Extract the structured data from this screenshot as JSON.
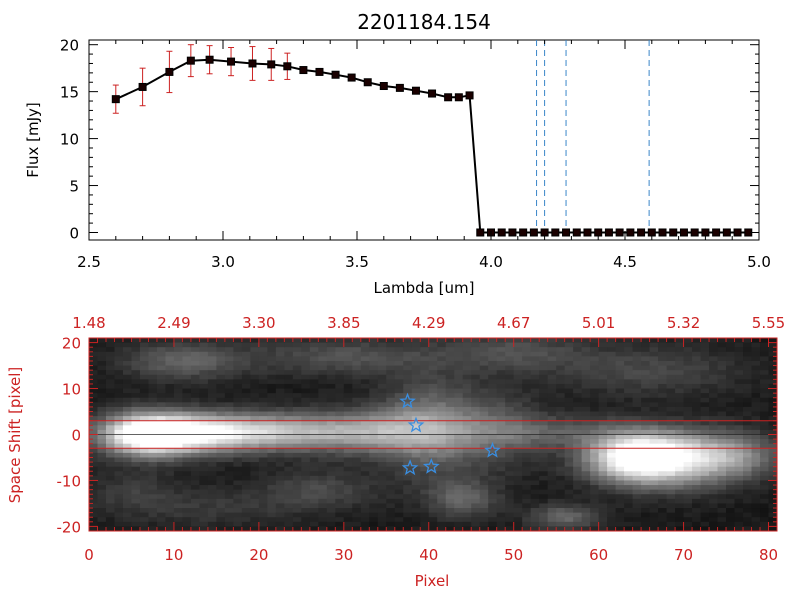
{
  "colors": {
    "axis_top": "#000000",
    "axis_bottom": "#cc2222",
    "errorbar": "#cc2222",
    "dashed_lines": "#3a86c8",
    "stars": "#3a8ee0",
    "band_lines": "#cc2222"
  },
  "chart_data": [
    {
      "type": "line",
      "title": "2201184.154",
      "xlabel": "Lambda [um]",
      "ylabel": "Flux [mJy]",
      "xlim": [
        2.5,
        5.0
      ],
      "ylim": [
        -0.8,
        20.5
      ],
      "xticks": [
        "2.5",
        "3.0",
        "3.5",
        "4.0",
        "4.5",
        "5.0"
      ],
      "yticks": [
        "0",
        "5",
        "10",
        "15",
        "20"
      ],
      "series": [
        {
          "x": [
            2.6,
            2.7,
            2.8,
            2.88,
            2.95,
            3.03,
            3.11,
            3.18,
            3.24,
            3.3,
            3.36,
            3.42,
            3.48,
            3.54,
            3.6,
            3.66,
            3.72,
            3.78,
            3.84,
            3.88,
            3.92,
            3.96,
            4.0,
            4.04,
            4.08,
            4.12,
            4.16,
            4.2,
            4.24,
            4.28,
            4.32,
            4.36,
            4.4,
            4.44,
            4.48,
            4.52,
            4.56,
            4.6,
            4.64,
            4.68,
            4.72,
            4.76,
            4.8,
            4.84,
            4.88,
            4.92,
            4.96
          ],
          "y": [
            14.2,
            15.5,
            17.1,
            18.3,
            18.4,
            18.2,
            18.0,
            17.9,
            17.7,
            17.3,
            17.1,
            16.8,
            16.5,
            16.0,
            15.6,
            15.4,
            15.1,
            14.8,
            14.4,
            14.4,
            14.6,
            0,
            0,
            0,
            0,
            0,
            0,
            0,
            0,
            0,
            0,
            0,
            0,
            0,
            0,
            0,
            0,
            0,
            0,
            0,
            0,
            0,
            0,
            0,
            0,
            0,
            0
          ],
          "yerr": [
            1.5,
            2.0,
            2.2,
            1.7,
            1.5,
            1.5,
            1.8,
            1.7,
            1.4,
            0,
            0,
            0,
            0,
            0,
            0,
            0,
            0,
            0,
            0,
            0,
            0,
            0,
            0,
            0,
            0,
            0,
            0,
            0,
            0,
            0,
            0,
            0,
            0,
            0,
            0,
            0,
            0,
            0,
            0,
            0,
            0,
            0,
            0,
            0,
            0,
            0,
            0
          ]
        }
      ],
      "vlines": [
        4.17,
        4.2,
        4.28,
        4.59
      ],
      "grid": false,
      "legend": "none"
    },
    {
      "type": "heatmap",
      "xlabel": "Pixel",
      "ylabel": "Space Shift [pixel]",
      "xlim": [
        0,
        81
      ],
      "ylim": [
        -21,
        21
      ],
      "xticks": [
        "0",
        "10",
        "20",
        "30",
        "40",
        "50",
        "60",
        "70",
        "80"
      ],
      "yticks": [
        "-20",
        "-10",
        "0",
        "10",
        "20"
      ],
      "top_tick_labels": [
        "1.48",
        "2.49",
        "3.30",
        "3.85",
        "4.29",
        "4.67",
        "5.01",
        "5.32",
        "5.55"
      ],
      "band_y": [
        3,
        -3
      ],
      "stars": [
        {
          "x": 37.5,
          "y": 7.2
        },
        {
          "x": 38.5,
          "y": 2.0
        },
        {
          "x": 37.8,
          "y": -7.3
        },
        {
          "x": 40.3,
          "y": -7.0
        },
        {
          "x": 47.5,
          "y": -3.5
        }
      ],
      "blobs": [
        {
          "x": 7,
          "y": 0,
          "sx": 4,
          "sy": 3.2,
          "a": 1.0
        },
        {
          "x": 14,
          "y": 0.3,
          "sx": 6,
          "sy": 3.0,
          "a": 0.55
        },
        {
          "x": 22,
          "y": 0.6,
          "sx": 8,
          "sy": 2.8,
          "a": 0.42
        },
        {
          "x": 33,
          "y": 0.5,
          "sx": 6,
          "sy": 3.4,
          "a": 0.38
        },
        {
          "x": 40,
          "y": 1.5,
          "sx": 4,
          "sy": 7,
          "a": 0.38
        },
        {
          "x": 48,
          "y": 1.0,
          "sx": 4,
          "sy": 6,
          "a": 0.22
        },
        {
          "x": 55,
          "y": 0.5,
          "sx": 8,
          "sy": 2.5,
          "a": 0.22
        },
        {
          "x": 64,
          "y": -5,
          "sx": 4,
          "sy": 3.6,
          "a": 0.78
        },
        {
          "x": 69,
          "y": -5.5,
          "sx": 5,
          "sy": 4.2,
          "a": 0.62
        },
        {
          "x": 76,
          "y": -4.5,
          "sx": 4,
          "sy": 3.5,
          "a": 0.35
        },
        {
          "x": 11,
          "y": 16,
          "sx": 5,
          "sy": 3,
          "a": 0.28
        },
        {
          "x": 30,
          "y": 17,
          "sx": 8,
          "sy": 3,
          "a": 0.22
        },
        {
          "x": 50,
          "y": 18,
          "sx": 6,
          "sy": 3,
          "a": 0.2
        },
        {
          "x": 66,
          "y": 14,
          "sx": 8,
          "sy": 4,
          "a": 0.18
        },
        {
          "x": 44,
          "y": -14,
          "sx": 3,
          "sy": 3,
          "a": 0.28
        },
        {
          "x": 14,
          "y": -16,
          "sx": 8,
          "sy": 3,
          "a": 0.12
        },
        {
          "x": 56,
          "y": -18,
          "sx": 3,
          "sy": 2,
          "a": 0.3
        },
        {
          "x": 5,
          "y": -12,
          "sx": 4,
          "sy": 3,
          "a": 0.12
        },
        {
          "x": 27,
          "y": -12,
          "sx": 5,
          "sy": 3,
          "a": 0.18
        }
      ]
    }
  ]
}
